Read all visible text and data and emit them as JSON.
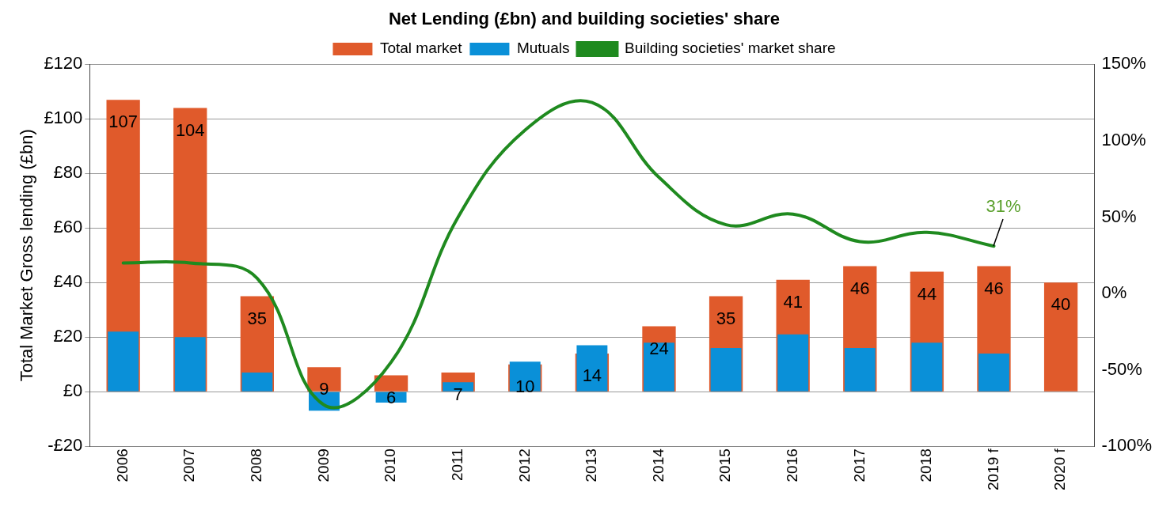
{
  "chart_data": {
    "type": "bar",
    "title": "Net Lending (£bn) and building societies' share",
    "categories": [
      "2006",
      "2007",
      "2008",
      "2009",
      "2010",
      "2011",
      "2012",
      "2013",
      "2014",
      "2015",
      "2016",
      "2017",
      "2018",
      "2019 f",
      "2020 f"
    ],
    "series": [
      {
        "name": "Total market",
        "color": "#e05a2b",
        "values": [
          107,
          104,
          35,
          9,
          6,
          7,
          10,
          14,
          24,
          35,
          41,
          46,
          44,
          46,
          40
        ],
        "data_labels": true
      },
      {
        "name": "Mutuals",
        "color": "#0a90d8",
        "values": [
          22,
          20,
          7,
          -7,
          -4,
          3.5,
          11,
          17,
          18,
          16,
          21,
          16,
          18,
          14,
          null
        ]
      },
      {
        "name": "Building societies' market share",
        "type": "line",
        "axis": "y2",
        "color": "#1f8a1f",
        "values": [
          20,
          20,
          10,
          -73,
          -45,
          50,
          107,
          125,
          76,
          45,
          52,
          34,
          40,
          31,
          null
        ]
      }
    ],
    "ylabel": "Total Market Gross lending (£bn)",
    "ylim": [
      -20,
      120
    ],
    "yticks": [
      {
        "value": -20,
        "label": "-£20"
      },
      {
        "value": 0,
        "label": "£0"
      },
      {
        "value": 20,
        "label": "£20"
      },
      {
        "value": 40,
        "label": "£40"
      },
      {
        "value": 60,
        "label": "£60"
      },
      {
        "value": 80,
        "label": "£80"
      },
      {
        "value": 100,
        "label": "£100"
      },
      {
        "value": 120,
        "label": "£120"
      }
    ],
    "y2lim": [
      -100,
      150
    ],
    "y2ticks": [
      {
        "value": -100,
        "label": "-100%"
      },
      {
        "value": -50,
        "label": "-50%"
      },
      {
        "value": 0,
        "label": "0%"
      },
      {
        "value": 50,
        "label": "50%"
      },
      {
        "value": 100,
        "label": "100%"
      },
      {
        "value": 150,
        "label": "150%"
      }
    ],
    "annotations": [
      "31%"
    ],
    "grid": "y",
    "legend": "top",
    "marker": "none"
  }
}
